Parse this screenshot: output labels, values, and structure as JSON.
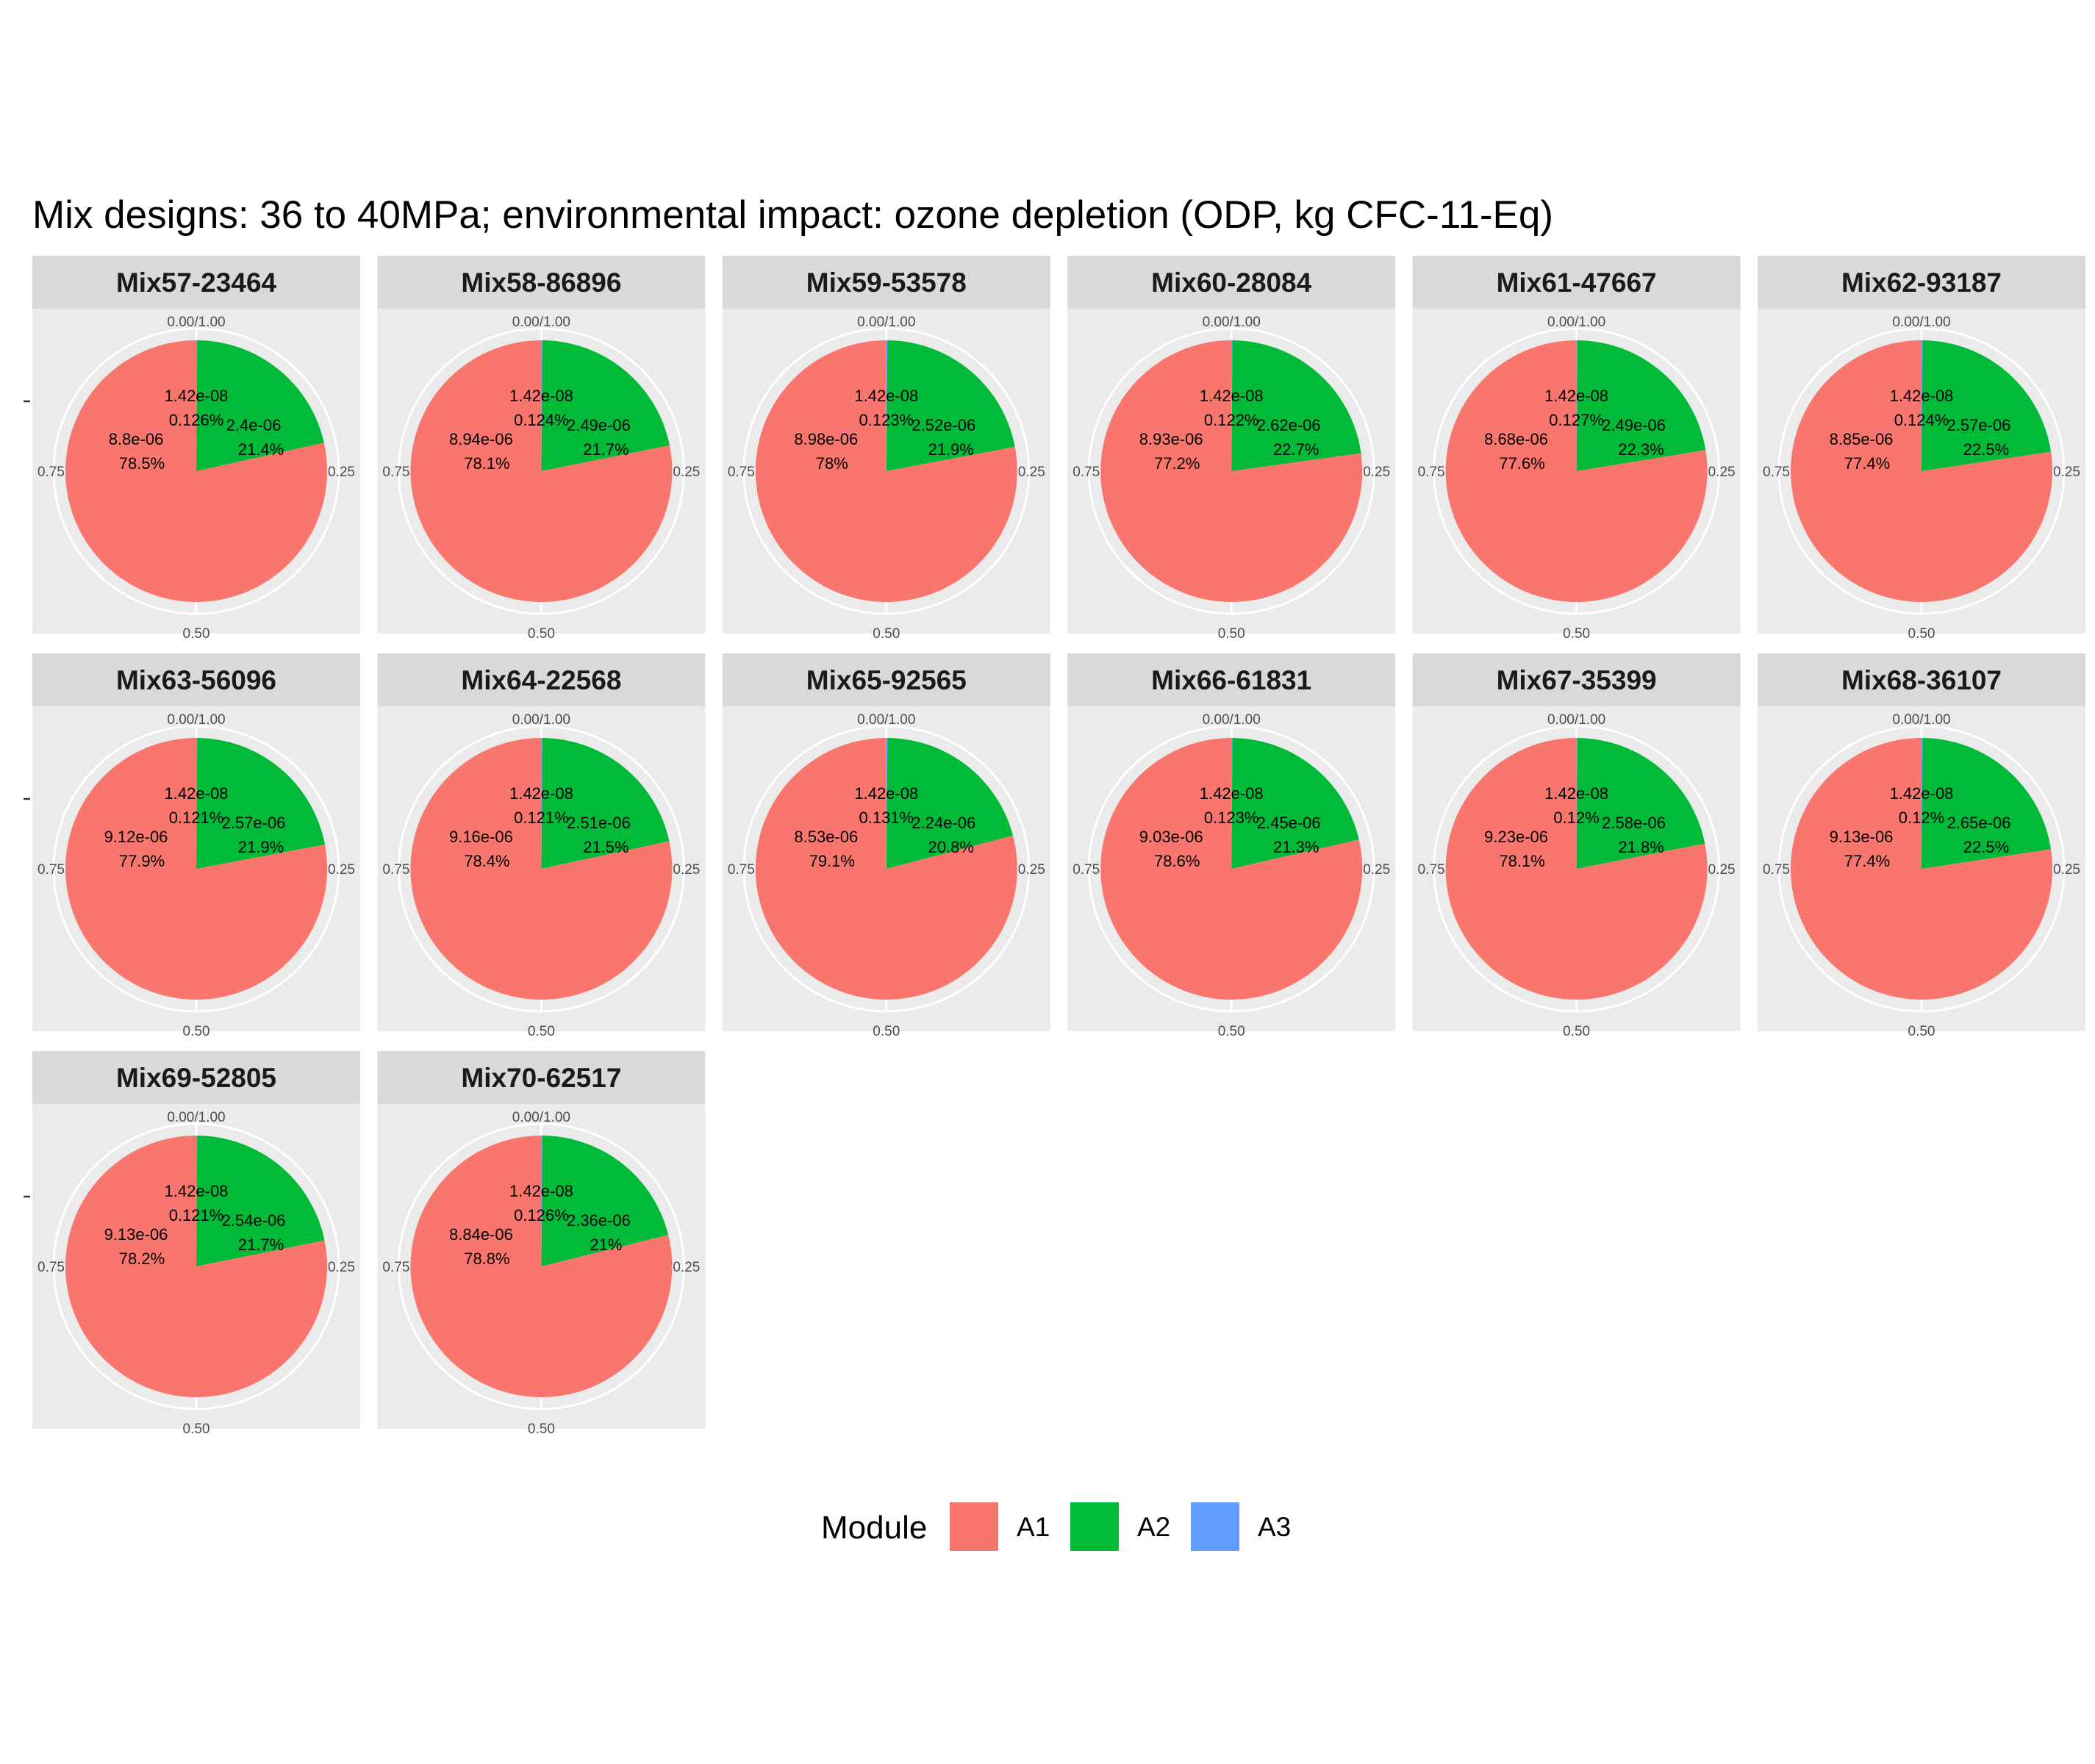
{
  "chart_data": {
    "type": "pie",
    "title": "Mix designs: 36 to 40MPa; environmental impact: ozone depletion (ODP, kg CFC-11-Eq)",
    "theta_ticks": [
      "0.00/1.00",
      "0.25",
      "0.50",
      "0.75"
    ],
    "legend": {
      "title": "Module",
      "placement": "bottom",
      "entries": [
        {
          "name": "A1",
          "color": "#F8766D"
        },
        {
          "name": "A2",
          "color": "#00BA38"
        },
        {
          "name": "A3",
          "color": "#619CFF"
        }
      ]
    },
    "panels": [
      {
        "name": "Mix57-23464",
        "slices": [
          {
            "module": "A1",
            "value": "8.8e-06",
            "percent": "78.5%",
            "fraction": 0.785
          },
          {
            "module": "A2",
            "value": "2.4e-06",
            "percent": "21.4%",
            "fraction": 0.214
          },
          {
            "module": "A3",
            "value": "1.42e-08",
            "percent": "0.126%",
            "fraction": 0.00126
          }
        ]
      },
      {
        "name": "Mix58-86896",
        "slices": [
          {
            "module": "A1",
            "value": "8.94e-06",
            "percent": "78.1%",
            "fraction": 0.781
          },
          {
            "module": "A2",
            "value": "2.49e-06",
            "percent": "21.7%",
            "fraction": 0.217
          },
          {
            "module": "A3",
            "value": "1.42e-08",
            "percent": "0.124%",
            "fraction": 0.00124
          }
        ]
      },
      {
        "name": "Mix59-53578",
        "slices": [
          {
            "module": "A1",
            "value": "8.98e-06",
            "percent": "78%",
            "fraction": 0.78
          },
          {
            "module": "A2",
            "value": "2.52e-06",
            "percent": "21.9%",
            "fraction": 0.219
          },
          {
            "module": "A3",
            "value": "1.42e-08",
            "percent": "0.123%",
            "fraction": 0.00123
          }
        ]
      },
      {
        "name": "Mix60-28084",
        "slices": [
          {
            "module": "A1",
            "value": "8.93e-06",
            "percent": "77.2%",
            "fraction": 0.772
          },
          {
            "module": "A2",
            "value": "2.62e-06",
            "percent": "22.7%",
            "fraction": 0.227
          },
          {
            "module": "A3",
            "value": "1.42e-08",
            "percent": "0.122%",
            "fraction": 0.00122
          }
        ]
      },
      {
        "name": "Mix61-47667",
        "slices": [
          {
            "module": "A1",
            "value": "8.68e-06",
            "percent": "77.6%",
            "fraction": 0.776
          },
          {
            "module": "A2",
            "value": "2.49e-06",
            "percent": "22.3%",
            "fraction": 0.223
          },
          {
            "module": "A3",
            "value": "1.42e-08",
            "percent": "0.127%",
            "fraction": 0.00127
          }
        ]
      },
      {
        "name": "Mix62-93187",
        "slices": [
          {
            "module": "A1",
            "value": "8.85e-06",
            "percent": "77.4%",
            "fraction": 0.774
          },
          {
            "module": "A2",
            "value": "2.57e-06",
            "percent": "22.5%",
            "fraction": 0.225
          },
          {
            "module": "A3",
            "value": "1.42e-08",
            "percent": "0.124%",
            "fraction": 0.00124
          }
        ]
      },
      {
        "name": "Mix63-56096",
        "slices": [
          {
            "module": "A1",
            "value": "9.12e-06",
            "percent": "77.9%",
            "fraction": 0.779
          },
          {
            "module": "A2",
            "value": "2.57e-06",
            "percent": "21.9%",
            "fraction": 0.219
          },
          {
            "module": "A3",
            "value": "1.42e-08",
            "percent": "0.121%",
            "fraction": 0.00121
          }
        ]
      },
      {
        "name": "Mix64-22568",
        "slices": [
          {
            "module": "A1",
            "value": "9.16e-06",
            "percent": "78.4%",
            "fraction": 0.784
          },
          {
            "module": "A2",
            "value": "2.51e-06",
            "percent": "21.5%",
            "fraction": 0.215
          },
          {
            "module": "A3",
            "value": "1.42e-08",
            "percent": "0.121%",
            "fraction": 0.00121
          }
        ]
      },
      {
        "name": "Mix65-92565",
        "slices": [
          {
            "module": "A1",
            "value": "8.53e-06",
            "percent": "79.1%",
            "fraction": 0.791
          },
          {
            "module": "A2",
            "value": "2.24e-06",
            "percent": "20.8%",
            "fraction": 0.208
          },
          {
            "module": "A3",
            "value": "1.42e-08",
            "percent": "0.131%",
            "fraction": 0.00131
          }
        ]
      },
      {
        "name": "Mix66-61831",
        "slices": [
          {
            "module": "A1",
            "value": "9.03e-06",
            "percent": "78.6%",
            "fraction": 0.786
          },
          {
            "module": "A2",
            "value": "2.45e-06",
            "percent": "21.3%",
            "fraction": 0.213
          },
          {
            "module": "A3",
            "value": "1.42e-08",
            "percent": "0.123%",
            "fraction": 0.00123
          }
        ]
      },
      {
        "name": "Mix67-35399",
        "slices": [
          {
            "module": "A1",
            "value": "9.23e-06",
            "percent": "78.1%",
            "fraction": 0.781
          },
          {
            "module": "A2",
            "value": "2.58e-06",
            "percent": "21.8%",
            "fraction": 0.218
          },
          {
            "module": "A3",
            "value": "1.42e-08",
            "percent": "0.12%",
            "fraction": 0.0012
          }
        ]
      },
      {
        "name": "Mix68-36107",
        "slices": [
          {
            "module": "A1",
            "value": "9.13e-06",
            "percent": "77.4%",
            "fraction": 0.774
          },
          {
            "module": "A2",
            "value": "2.65e-06",
            "percent": "22.5%",
            "fraction": 0.225
          },
          {
            "module": "A3",
            "value": "1.42e-08",
            "percent": "0.12%",
            "fraction": 0.0012
          }
        ]
      },
      {
        "name": "Mix69-52805",
        "slices": [
          {
            "module": "A1",
            "value": "9.13e-06",
            "percent": "78.2%",
            "fraction": 0.782
          },
          {
            "module": "A2",
            "value": "2.54e-06",
            "percent": "21.7%",
            "fraction": 0.217
          },
          {
            "module": "A3",
            "value": "1.42e-08",
            "percent": "0.121%",
            "fraction": 0.00121
          }
        ]
      },
      {
        "name": "Mix70-62517",
        "slices": [
          {
            "module": "A1",
            "value": "8.84e-06",
            "percent": "78.8%",
            "fraction": 0.788
          },
          {
            "module": "A2",
            "value": "2.36e-06",
            "percent": "21%",
            "fraction": 0.21
          },
          {
            "module": "A3",
            "value": "1.42e-08",
            "percent": "0.126%",
            "fraction": 0.00126
          }
        ]
      }
    ]
  }
}
